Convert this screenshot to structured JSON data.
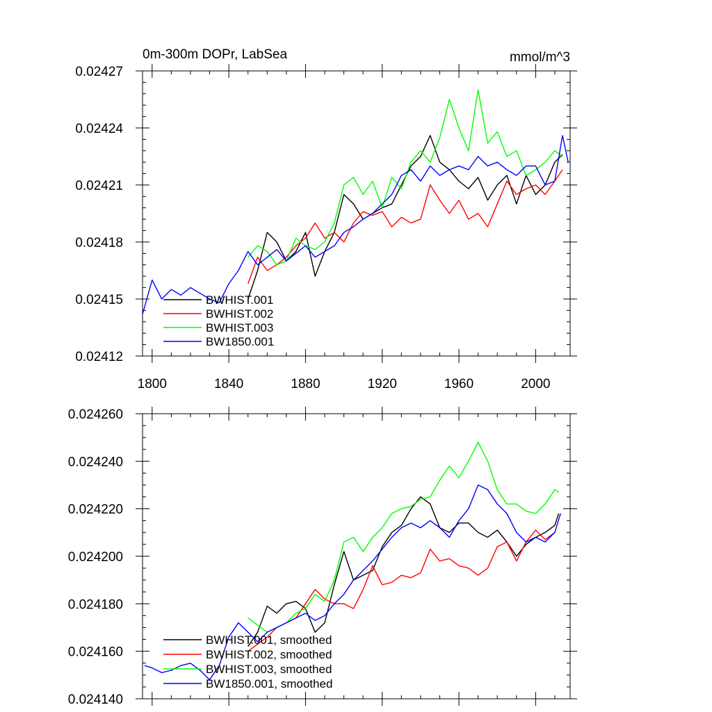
{
  "chart_data": [
    {
      "type": "line",
      "title": "0m-300m DOPr, LabSea",
      "units": "mmol/m^3",
      "xlim": [
        1795,
        2018
      ],
      "ylim": [
        0.02412,
        0.02427
      ],
      "x_ticks": [
        1800,
        1840,
        1880,
        1920,
        1960,
        2000
      ],
      "x_tick_labels": [
        "1800",
        "1840",
        "1880",
        "1920",
        "1960",
        "2000"
      ],
      "y_ticks": [
        0.02412,
        0.02415,
        0.02418,
        0.02421,
        0.02424,
        0.02427
      ],
      "y_tick_labels": [
        "0.02412",
        "0.02415",
        "0.02418",
        "0.02421",
        "0.02424",
        "0.02427"
      ],
      "legend_position": "bottom-left",
      "series": [
        {
          "name": "BWHIST.001",
          "color": "#000000",
          "x": [
            1850,
            1855,
            1860,
            1865,
            1870,
            1875,
            1880,
            1885,
            1890,
            1895,
            1900,
            1905,
            1910,
            1915,
            1920,
            1925,
            1930,
            1935,
            1940,
            1945,
            1950,
            1955,
            1960,
            1965,
            1970,
            1975,
            1980,
            1985,
            1990,
            1995,
            2000,
            2005,
            2010,
            2014
          ],
          "y": [
            0.02415,
            0.024165,
            0.024185,
            0.02418,
            0.02417,
            0.024175,
            0.024185,
            0.024162,
            0.024175,
            0.024185,
            0.024205,
            0.0242,
            0.024192,
            0.024195,
            0.024198,
            0.0242,
            0.02421,
            0.02422,
            0.024225,
            0.024236,
            0.024222,
            0.024218,
            0.024212,
            0.024208,
            0.024214,
            0.024202,
            0.02421,
            0.024215,
            0.0242,
            0.024215,
            0.024205,
            0.02421,
            0.024222,
            0.024226
          ]
        },
        {
          "name": "BWHIST.002",
          "color": "#ff0000",
          "x": [
            1850,
            1855,
            1860,
            1865,
            1870,
            1875,
            1880,
            1885,
            1890,
            1895,
            1900,
            1905,
            1910,
            1915,
            1920,
            1925,
            1930,
            1935,
            1940,
            1945,
            1950,
            1955,
            1960,
            1965,
            1970,
            1975,
            1980,
            1985,
            1990,
            1995,
            2000,
            2005,
            2010,
            2014
          ],
          "y": [
            0.024158,
            0.024172,
            0.024165,
            0.024168,
            0.024172,
            0.024178,
            0.024182,
            0.02419,
            0.024182,
            0.024185,
            0.02418,
            0.02419,
            0.024196,
            0.024194,
            0.024196,
            0.024188,
            0.024193,
            0.02419,
            0.024192,
            0.02421,
            0.024202,
            0.024195,
            0.024202,
            0.024192,
            0.024195,
            0.024188,
            0.0242,
            0.024212,
            0.024205,
            0.024208,
            0.02421,
            0.024205,
            0.024212,
            0.024218
          ]
        },
        {
          "name": "BWHIST.003",
          "color": "#00ff00",
          "x": [
            1850,
            1855,
            1860,
            1865,
            1870,
            1875,
            1880,
            1885,
            1890,
            1895,
            1900,
            1905,
            1910,
            1915,
            1920,
            1925,
            1930,
            1935,
            1940,
            1945,
            1950,
            1955,
            1960,
            1965,
            1970,
            1975,
            1980,
            1985,
            1990,
            1995,
            2000,
            2005,
            2010,
            2014
          ],
          "y": [
            0.024172,
            0.024178,
            0.024175,
            0.024168,
            0.02417,
            0.024182,
            0.024178,
            0.024176,
            0.02418,
            0.02419,
            0.02421,
            0.024214,
            0.024205,
            0.024212,
            0.024198,
            0.024214,
            0.024208,
            0.024222,
            0.024228,
            0.024222,
            0.024235,
            0.024255,
            0.02424,
            0.024228,
            0.02426,
            0.024232,
            0.024238,
            0.024225,
            0.024228,
            0.024215,
            0.024218,
            0.024222,
            0.024228,
            0.024225
          ]
        },
        {
          "name": "BW1850.001",
          "color": "#0000ff",
          "x": [
            1795,
            1800,
            1805,
            1810,
            1815,
            1820,
            1825,
            1830,
            1835,
            1840,
            1845,
            1850,
            1855,
            1860,
            1865,
            1870,
            1875,
            1880,
            1885,
            1890,
            1895,
            1900,
            1905,
            1910,
            1915,
            1920,
            1925,
            1930,
            1935,
            1940,
            1945,
            1950,
            1955,
            1960,
            1965,
            1970,
            1975,
            1980,
            1985,
            1990,
            1995,
            2000,
            2005,
            2010,
            2014,
            2017
          ],
          "y": [
            0.024142,
            0.02416,
            0.02415,
            0.024155,
            0.024152,
            0.024156,
            0.024153,
            0.02415,
            0.024148,
            0.024158,
            0.024165,
            0.024175,
            0.024168,
            0.024172,
            0.024176,
            0.02417,
            0.024174,
            0.024178,
            0.024172,
            0.024175,
            0.024178,
            0.024185,
            0.024188,
            0.024192,
            0.024195,
            0.0242,
            0.024205,
            0.024215,
            0.024218,
            0.024212,
            0.02422,
            0.024215,
            0.024218,
            0.02422,
            0.024218,
            0.024225,
            0.02422,
            0.024222,
            0.024218,
            0.024215,
            0.02422,
            0.02422,
            0.02421,
            0.024212,
            0.024236,
            0.024222
          ]
        }
      ]
    },
    {
      "type": "line",
      "title": "",
      "xlim": [
        1795,
        2018
      ],
      "ylim": [
        0.02414,
        0.02426
      ],
      "y_ticks": [
        0.02414,
        0.02416,
        0.02418,
        0.0242,
        0.02422,
        0.02424,
        0.02426
      ],
      "y_tick_labels": [
        "0.024140",
        "0.024160",
        "0.024180",
        "0.024200",
        "0.024220",
        "0.024240",
        "0.024260"
      ],
      "legend_position": "bottom-left",
      "series": [
        {
          "name": "BWHIST.001, smoothed",
          "color": "#000000",
          "x": [
            1850,
            1855,
            1860,
            1865,
            1870,
            1875,
            1880,
            1885,
            1890,
            1895,
            1900,
            1905,
            1910,
            1915,
            1920,
            1925,
            1930,
            1935,
            1940,
            1945,
            1950,
            1955,
            1960,
            1965,
            1970,
            1975,
            1980,
            1985,
            1990,
            1995,
            2000,
            2005,
            2010,
            2012
          ],
          "y": [
            0.024162,
            0.024168,
            0.024179,
            0.024176,
            0.02418,
            0.024181,
            0.024178,
            0.024168,
            0.024172,
            0.024188,
            0.024202,
            0.02419,
            0.024192,
            0.024194,
            0.024204,
            0.02421,
            0.024213,
            0.02422,
            0.024225,
            0.024222,
            0.024212,
            0.02421,
            0.024214,
            0.024214,
            0.02421,
            0.024208,
            0.024211,
            0.024206,
            0.0242,
            0.024205,
            0.024208,
            0.02421,
            0.024213,
            0.024218
          ]
        },
        {
          "name": "BWHIST.002, smoothed",
          "color": "#ff0000",
          "x": [
            1850,
            1855,
            1860,
            1865,
            1870,
            1875,
            1880,
            1885,
            1890,
            1895,
            1900,
            1905,
            1910,
            1915,
            1920,
            1925,
            1930,
            1935,
            1940,
            1945,
            1950,
            1955,
            1960,
            1965,
            1970,
            1975,
            1980,
            1985,
            1990,
            1995,
            2000,
            2005,
            2010
          ],
          "y": [
            0.02416,
            0.024163,
            0.024166,
            0.02417,
            0.024172,
            0.024174,
            0.02418,
            0.024186,
            0.024182,
            0.02418,
            0.02418,
            0.024178,
            0.024186,
            0.024196,
            0.024188,
            0.024189,
            0.024192,
            0.024191,
            0.024193,
            0.024203,
            0.024198,
            0.024199,
            0.024196,
            0.024195,
            0.024192,
            0.024195,
            0.024204,
            0.024206,
            0.024198,
            0.024206,
            0.024211,
            0.024207,
            0.02421
          ]
        },
        {
          "name": "BWHIST.003, smoothed",
          "color": "#00ff00",
          "x": [
            1850,
            1855,
            1860,
            1865,
            1870,
            1875,
            1880,
            1885,
            1890,
            1895,
            1900,
            1905,
            1910,
            1915,
            1920,
            1925,
            1930,
            1935,
            1940,
            1945,
            1950,
            1955,
            1960,
            1965,
            1970,
            1975,
            1980,
            1985,
            1990,
            1995,
            2000,
            2005,
            2010,
            2012
          ],
          "y": [
            0.024174,
            0.024171,
            0.024168,
            0.02417,
            0.024172,
            0.024176,
            0.024178,
            0.024184,
            0.024181,
            0.02419,
            0.024206,
            0.024208,
            0.024202,
            0.024208,
            0.024212,
            0.024218,
            0.02422,
            0.024221,
            0.024224,
            0.024225,
            0.024232,
            0.024238,
            0.024233,
            0.02424,
            0.024248,
            0.02424,
            0.024228,
            0.024222,
            0.024222,
            0.024219,
            0.024218,
            0.024222,
            0.024228,
            0.024227
          ]
        },
        {
          "name": "BW1850.001, smoothed",
          "color": "#0000ff",
          "x": [
            1796,
            1800,
            1805,
            1810,
            1815,
            1820,
            1825,
            1830,
            1835,
            1840,
            1845,
            1850,
            1855,
            1860,
            1865,
            1870,
            1875,
            1880,
            1885,
            1890,
            1895,
            1900,
            1905,
            1910,
            1915,
            1920,
            1925,
            1930,
            1935,
            1940,
            1945,
            1950,
            1955,
            1960,
            1965,
            1970,
            1975,
            1980,
            1985,
            1990,
            1995,
            2000,
            2005,
            2010,
            2013
          ],
          "y": [
            0.024154,
            0.024153,
            0.024151,
            0.024152,
            0.024154,
            0.024155,
            0.024152,
            0.024148,
            0.024154,
            0.024166,
            0.024172,
            0.024168,
            0.024164,
            0.024168,
            0.02417,
            0.024172,
            0.024174,
            0.024176,
            0.024173,
            0.024175,
            0.02418,
            0.024184,
            0.02419,
            0.024194,
            0.024198,
            0.024203,
            0.024208,
            0.024212,
            0.024214,
            0.024212,
            0.024215,
            0.024212,
            0.024208,
            0.024215,
            0.02422,
            0.02423,
            0.024228,
            0.024222,
            0.024218,
            0.02421,
            0.024206,
            0.024208,
            0.024206,
            0.02421,
            0.024218
          ]
        }
      ]
    }
  ]
}
